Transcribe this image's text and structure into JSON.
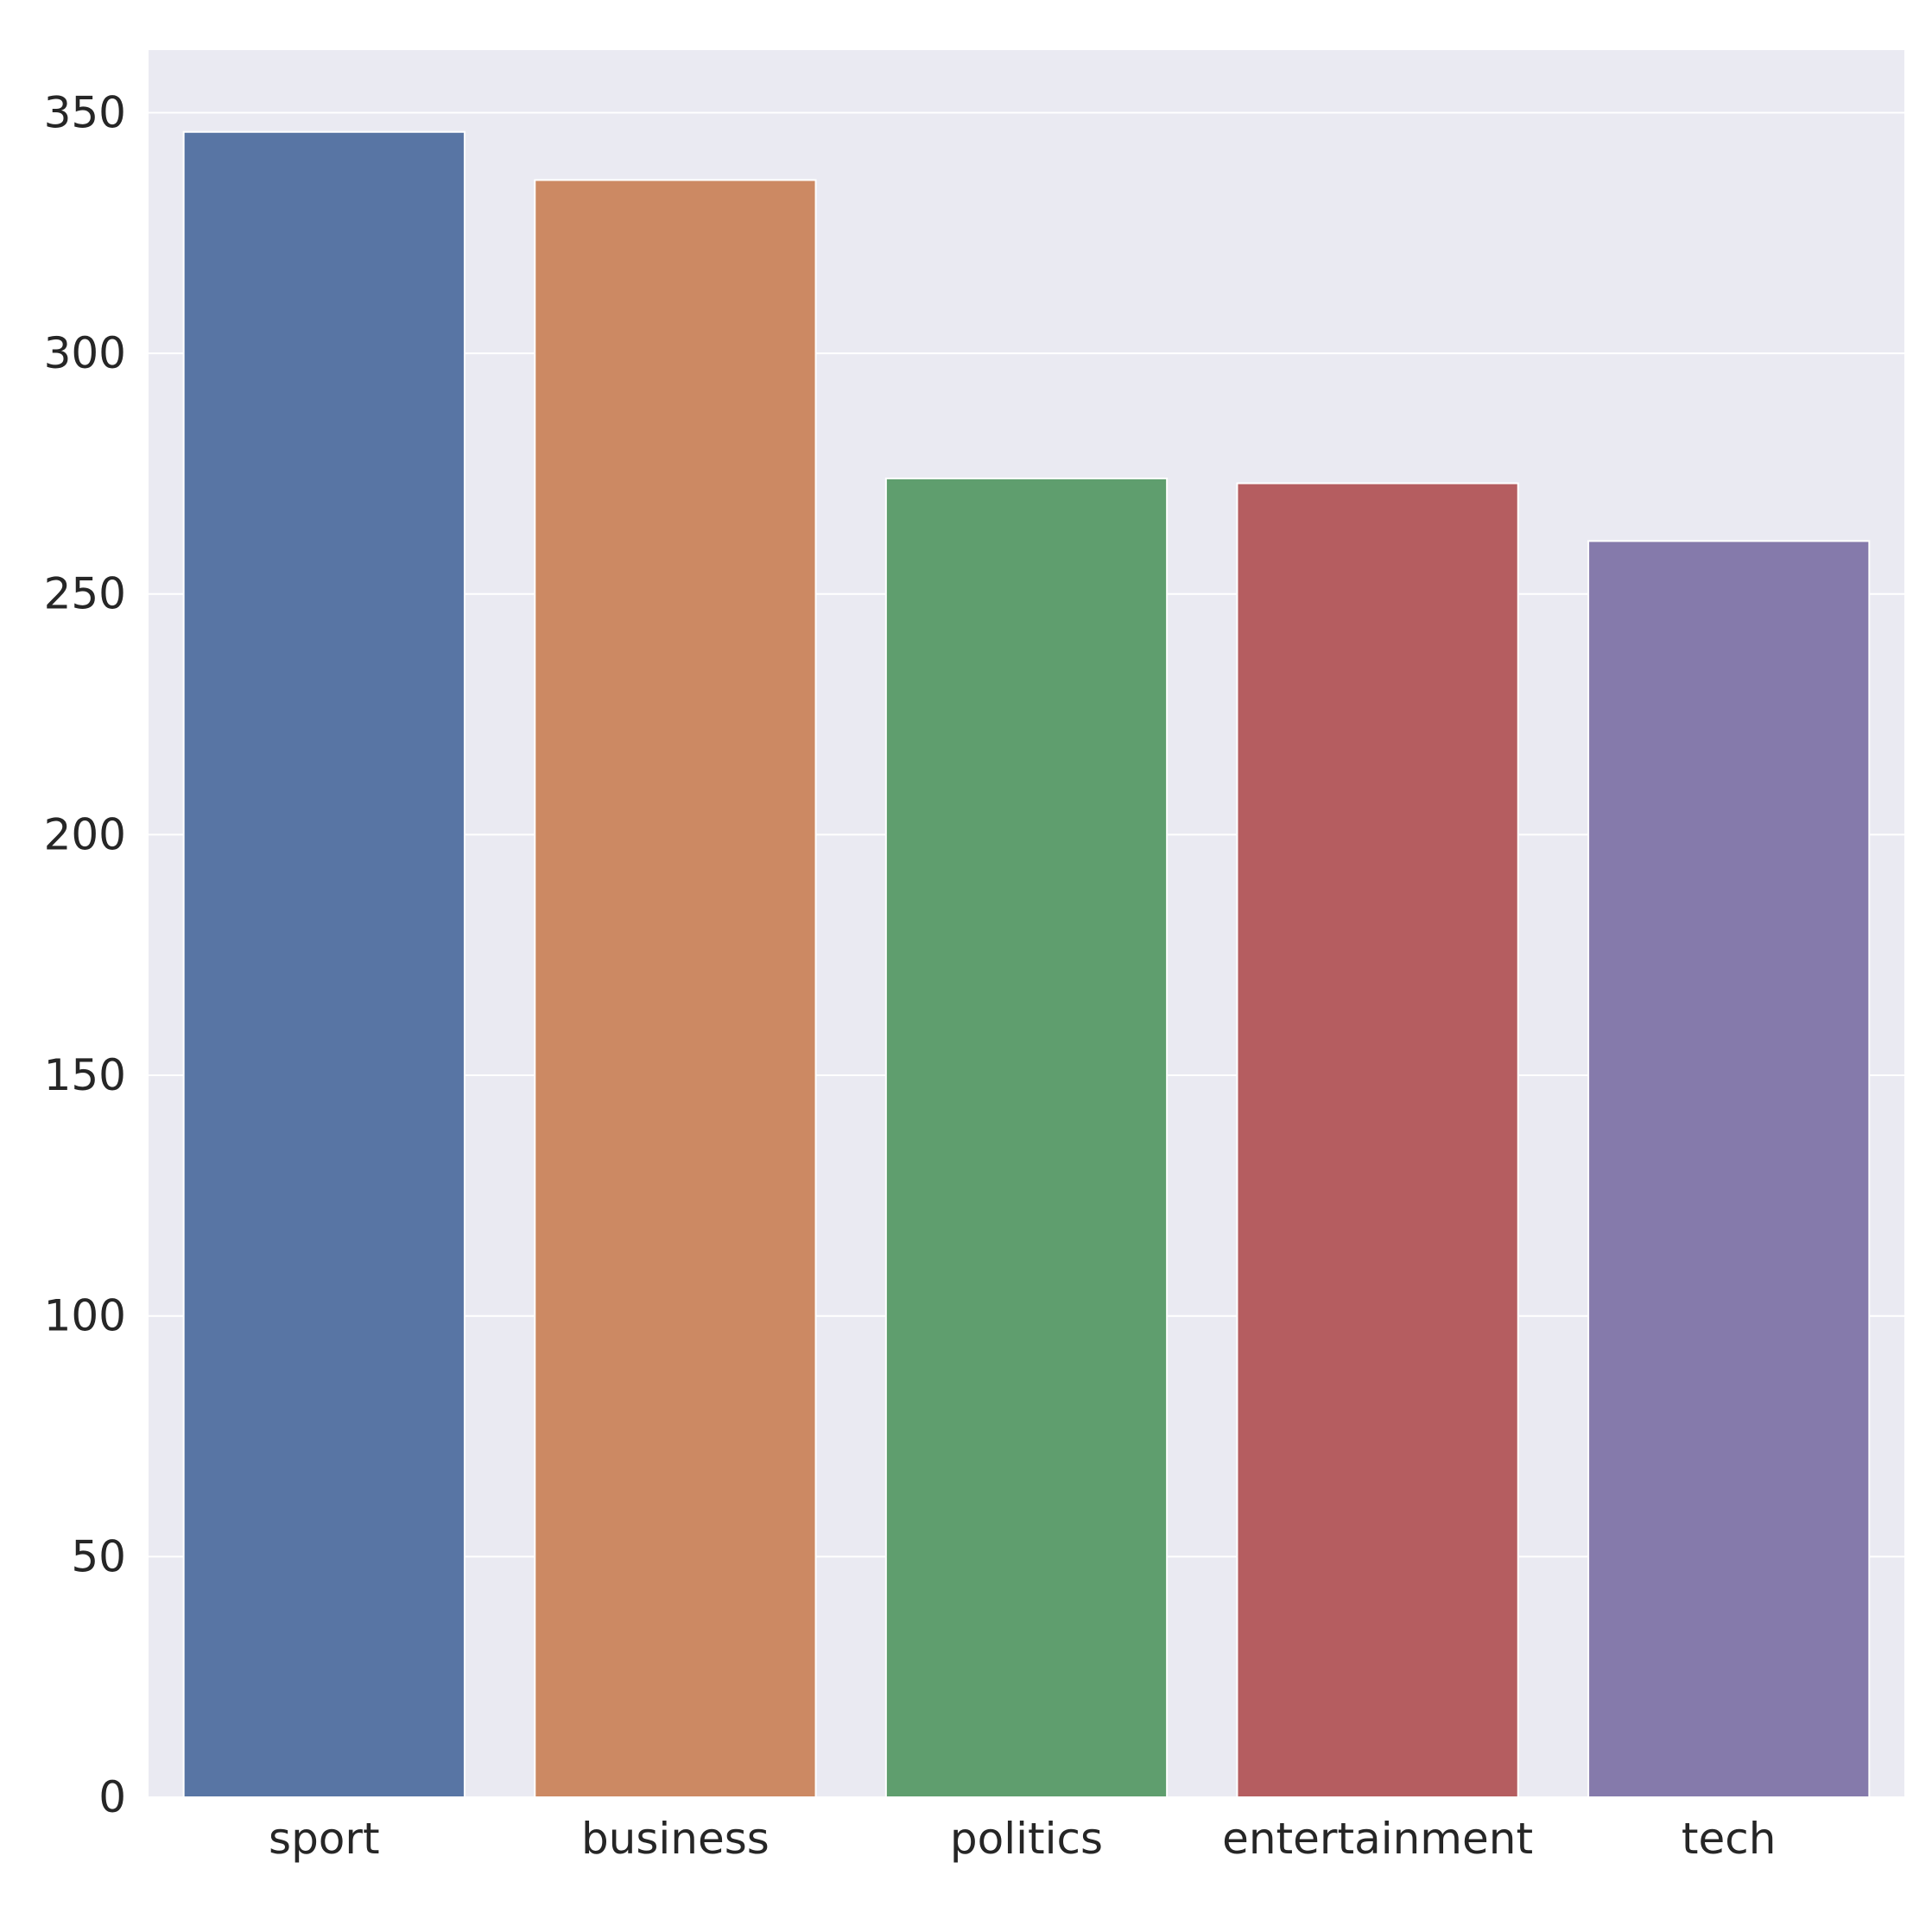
{
  "chart_data": {
    "type": "bar",
    "categories": [
      "sport",
      "business",
      "politics",
      "entertainment",
      "tech"
    ],
    "values": [
      346,
      336,
      274,
      273,
      261
    ],
    "colors": [
      "#5875a4",
      "#cc8963",
      "#5f9e6e",
      "#b55d60",
      "#857aab"
    ],
    "ylim": [
      0,
      363
    ],
    "yticks": [
      0,
      50,
      100,
      150,
      200,
      250,
      300,
      350
    ],
    "ytick_labels": [
      "0",
      "50",
      "100",
      "150",
      "200",
      "250",
      "300",
      "350"
    ],
    "grid": true,
    "background": "#eaeaf2",
    "grid_color": "#ffffff"
  }
}
